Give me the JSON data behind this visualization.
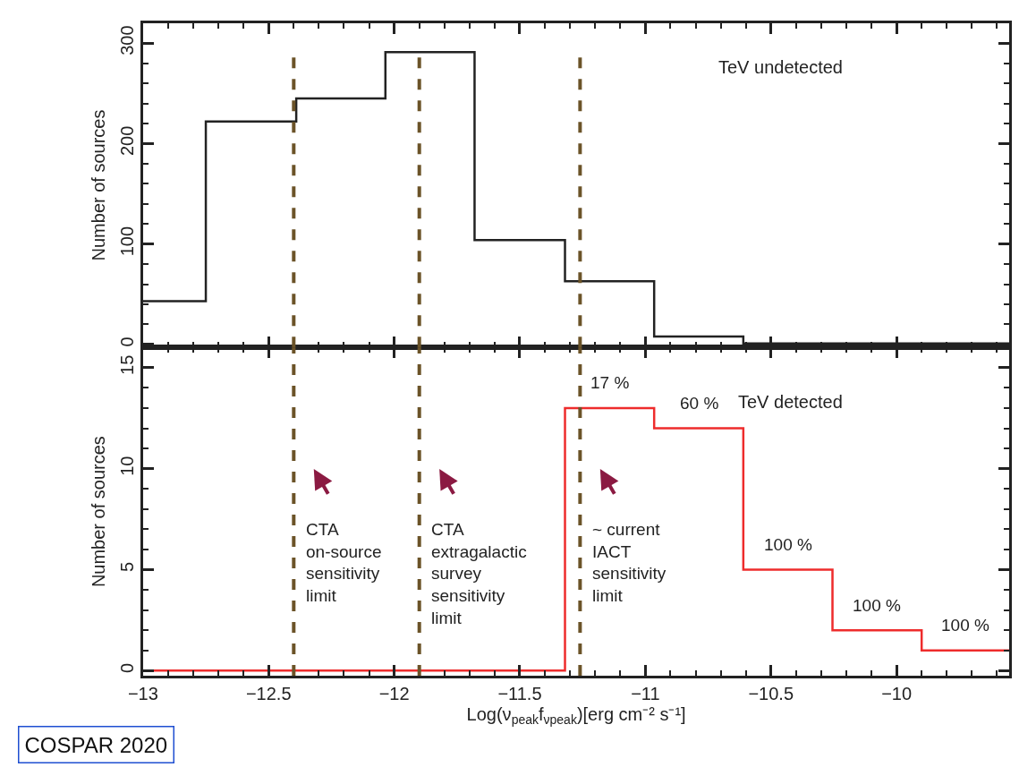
{
  "chart_data": [
    {
      "type": "histogram",
      "ylabel": "Number of sources",
      "bins": [
        -13,
        -12.75,
        -12.39,
        -12.035,
        -11.68,
        -11.32,
        -10.965,
        -10.61,
        -10.255,
        -9.9,
        -9.55
      ],
      "values": [
        43,
        222,
        245,
        291,
        104,
        63,
        8,
        1,
        1,
        1
      ],
      "color": "#222222",
      "xlim": [
        -13,
        -9.55
      ],
      "xticks": [
        -13,
        -12.5,
        -12,
        -11.5,
        -11,
        -10.5,
        -10
      ],
      "ylim": [
        -3,
        320
      ],
      "yticks": [
        0,
        100,
        200,
        300
      ],
      "tick_labels": "y",
      "legend": false,
      "ref_lines": [
        {
          "axis": "x",
          "value": -12.4,
          "color": "#6b5328",
          "line_style": "dashed"
        },
        {
          "axis": "x",
          "value": -11.9,
          "color": "#6b5328",
          "line_style": "dashed"
        },
        {
          "axis": "x",
          "value": -11.26,
          "color": "#6b5328",
          "line_style": "dashed"
        }
      ],
      "annotations": [
        "TeV undetected"
      ]
    },
    {
      "type": "histogram",
      "xlabel": "Log(ν$_{peak}$f$_{νpeak}$)[erg cm⁻² s⁻¹]",
      "ylabel": "Number of sources",
      "bins": [
        -13,
        -12.75,
        -12.39,
        -12.035,
        -11.68,
        -11.32,
        -10.965,
        -10.61,
        -10.255,
        -9.9,
        -9.55
      ],
      "values": [
        0,
        0,
        0,
        0,
        0,
        13,
        12,
        5,
        2,
        1
      ],
      "color": "#ee2c2c",
      "xlim": [
        -13,
        -9.55
      ],
      "xticks": [
        -13,
        -12.5,
        -12,
        -11.5,
        -11,
        -10.5,
        -10
      ],
      "ylim": [
        -0.25,
        16
      ],
      "yticks": [
        0,
        5,
        10,
        15
      ],
      "legend": false,
      "ref_lines": [
        {
          "axis": "x",
          "value": -12.4,
          "color": "#6b5328",
          "line_style": "dashed",
          "label": "CTA\non-source\nsensitivity\nlimit"
        },
        {
          "axis": "x",
          "value": -11.9,
          "color": "#6b5328",
          "line_style": "dashed",
          "label": "CTA\nextragalactic\nsurvey\nsensitivity\nlimit"
        },
        {
          "axis": "x",
          "value": -11.26,
          "color": "#6b5328",
          "line_style": "dashed",
          "label": "~ current\nIACT\nsensitivity\nlimit"
        }
      ],
      "annotations": [
        "TeV detected",
        "17 %",
        "60 %",
        "100 %",
        "100 %",
        "100 %",
        "COSPAR 2020"
      ]
    }
  ]
}
